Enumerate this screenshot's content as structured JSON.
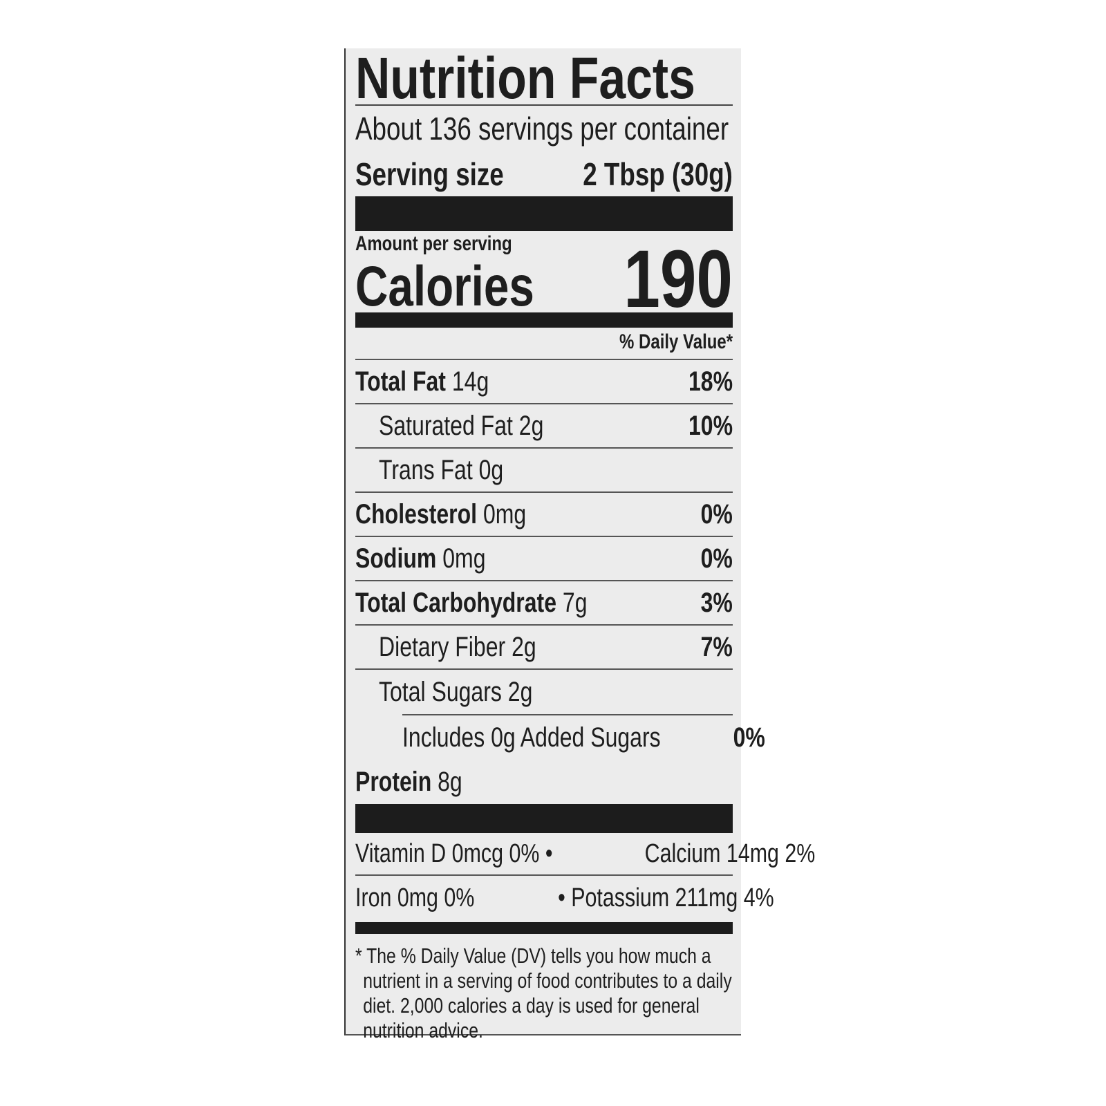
{
  "title": "Nutrition Facts",
  "servings_per_container": "About 136 servings per container",
  "serving_size": {
    "label": "Serving size",
    "value": "2 Tbsp (30g)"
  },
  "amount_per_serving": "Amount per serving",
  "calories": {
    "label": "Calories",
    "value": "190"
  },
  "daily_value_header": "% Daily Value*",
  "nutrients": [
    {
      "name": "Total Fat",
      "amount": "14g",
      "dv": "18%"
    },
    {
      "name": "Saturated Fat",
      "amount": "2g",
      "dv": "10%"
    },
    {
      "name": "Trans Fat",
      "amount": "0g",
      "dv": ""
    },
    {
      "name": "Cholesterol",
      "amount": "0mg",
      "dv": "0%"
    },
    {
      "name": "Sodium",
      "amount": "0mg",
      "dv": "0%"
    },
    {
      "name": "Total Carbohydrate",
      "amount": "7g",
      "dv": "3%"
    },
    {
      "name": "Dietary Fiber",
      "amount": "2g",
      "dv": "7%"
    },
    {
      "name": "Total Sugars",
      "amount": "2g",
      "dv": ""
    },
    {
      "name": "Includes 0g Added Sugars",
      "amount": "",
      "dv": "0%"
    },
    {
      "name": "Protein",
      "amount": "8g",
      "dv": ""
    }
  ],
  "vitamins": [
    {
      "left": "Vitamin D 0mcg 0% •",
      "right": "Calcium 14mg 2%"
    },
    {
      "left": "Iron 0mg 0%",
      "right": "• Potassium 211mg 4%"
    }
  ],
  "footnote": "* The % Daily Value (DV) tells you how much a nutrient in a serving of food contributes to a daily diet. 2,000 calories a day is used for general nutrition advice."
}
